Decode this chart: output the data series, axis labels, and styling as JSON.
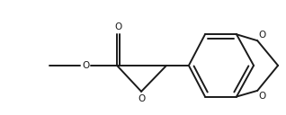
{
  "bg_color": "#ffffff",
  "line_color": "#1a1a1a",
  "line_width": 1.4,
  "font_size": 7.5,
  "figsize": [
    3.18,
    1.28
  ],
  "dpi": 100,
  "xlim": [
    0,
    10
  ],
  "ylim": [
    0,
    4
  ]
}
